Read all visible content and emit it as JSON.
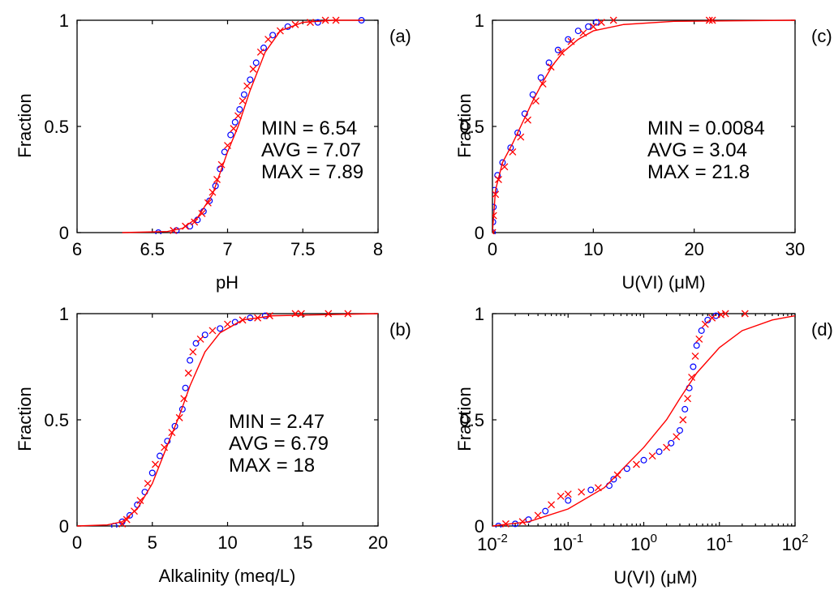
{
  "figure": {
    "panels": [
      {
        "id": "a",
        "tag": "(a)",
        "xlabel": "pH",
        "ylabel": "Fraction",
        "xticks": [
          6,
          6.5,
          7,
          7.5,
          8
        ],
        "xtick_labels": [
          "6",
          "6.5",
          "7",
          "7.5",
          "8"
        ],
        "yticks": [
          0,
          0.5,
          1
        ],
        "ytick_labels": [
          "0",
          "0.5",
          "1"
        ],
        "stats": [
          "MIN = 6.54",
          "AVG = 7.07",
          "MAX = 7.89"
        ]
      },
      {
        "id": "b",
        "tag": "(b)",
        "xlabel": "Alkalinity (meq/L)",
        "ylabel": "Fraction",
        "xticks": [
          0,
          5,
          10,
          15,
          20
        ],
        "xtick_labels": [
          "0",
          "5",
          "10",
          "15",
          "20"
        ],
        "yticks": [
          0,
          0.5,
          1
        ],
        "ytick_labels": [
          "0",
          "0.5",
          "1"
        ],
        "stats": [
          "MIN = 2.47",
          "AVG = 6.79",
          "MAX = 18"
        ]
      },
      {
        "id": "c",
        "tag": "(c)",
        "xlabel": "U(VI) (μM)",
        "ylabel": "Fraction",
        "xticks": [
          0,
          10,
          20,
          30
        ],
        "xtick_labels": [
          "0",
          "10",
          "20",
          "30"
        ],
        "yticks": [
          0,
          0.5,
          1
        ],
        "ytick_labels": [
          "0",
          "0.5",
          "1"
        ],
        "stats": [
          "MIN = 0.0084",
          "AVG = 3.04",
          "MAX = 21.8"
        ]
      },
      {
        "id": "d",
        "tag": "(d)",
        "xlabel": "U(VI) (μM)",
        "ylabel": "Fraction",
        "xticks": [
          0.01,
          0.1,
          1,
          10,
          100
        ],
        "xtick_base": "10",
        "xtick_exponents": [
          "-2",
          "-1",
          "0",
          "1",
          "2"
        ],
        "yticks": [
          0,
          0.5,
          1
        ],
        "ytick_labels": [
          "0",
          "0.5",
          "1"
        ],
        "stats": []
      }
    ]
  },
  "chart_data": [
    {
      "type": "scatter",
      "panel": "a",
      "xlabel": "pH",
      "ylabel": "Fraction",
      "xlim": [
        6,
        8
      ],
      "ylim": [
        0,
        1
      ],
      "series": [
        {
          "marker": "o",
          "color": "#0000ff",
          "points": [
            [
              6.54,
              0.0
            ],
            [
              6.66,
              0.01
            ],
            [
              6.75,
              0.03
            ],
            [
              6.8,
              0.06
            ],
            [
              6.84,
              0.1
            ],
            [
              6.88,
              0.15
            ],
            [
              6.92,
              0.22
            ],
            [
              6.95,
              0.3
            ],
            [
              6.98,
              0.38
            ],
            [
              7.02,
              0.46
            ],
            [
              7.05,
              0.52
            ],
            [
              7.08,
              0.58
            ],
            [
              7.11,
              0.65
            ],
            [
              7.15,
              0.72
            ],
            [
              7.19,
              0.8
            ],
            [
              7.24,
              0.87
            ],
            [
              7.3,
              0.93
            ],
            [
              7.4,
              0.97
            ],
            [
              7.6,
              0.99
            ],
            [
              7.89,
              1.0
            ]
          ]
        },
        {
          "marker": "x",
          "color": "#ff0000",
          "points": [
            [
              6.64,
              0.01
            ],
            [
              6.72,
              0.03
            ],
            [
              6.78,
              0.05
            ],
            [
              6.83,
              0.09
            ],
            [
              6.87,
              0.14
            ],
            [
              6.9,
              0.19
            ],
            [
              6.93,
              0.25
            ],
            [
              6.96,
              0.32
            ],
            [
              7.0,
              0.41
            ],
            [
              7.04,
              0.49
            ],
            [
              7.07,
              0.55
            ],
            [
              7.1,
              0.62
            ],
            [
              7.13,
              0.69
            ],
            [
              7.17,
              0.77
            ],
            [
              7.22,
              0.85
            ],
            [
              7.27,
              0.91
            ],
            [
              7.35,
              0.95
            ],
            [
              7.45,
              0.98
            ],
            [
              7.55,
              0.99
            ],
            [
              7.65,
              1.0
            ],
            [
              7.72,
              1.0
            ]
          ]
        },
        {
          "marker": "line",
          "color": "#ff0000",
          "points": [
            [
              6.3,
              0.0
            ],
            [
              6.6,
              0.005
            ],
            [
              6.7,
              0.02
            ],
            [
              6.8,
              0.07
            ],
            [
              6.9,
              0.18
            ],
            [
              7.0,
              0.38
            ],
            [
              7.07,
              0.5
            ],
            [
              7.15,
              0.67
            ],
            [
              7.25,
              0.85
            ],
            [
              7.35,
              0.95
            ],
            [
              7.5,
              0.99
            ],
            [
              7.7,
              1.0
            ],
            [
              7.9,
              1.0
            ]
          ]
        }
      ]
    },
    {
      "type": "scatter",
      "panel": "b",
      "xlabel": "Alkalinity (meq/L)",
      "ylabel": "Fraction",
      "xlim": [
        0,
        20
      ],
      "ylim": [
        0,
        1
      ],
      "series": [
        {
          "marker": "o",
          "color": "#0000ff",
          "points": [
            [
              2.47,
              0.0
            ],
            [
              3.0,
              0.02
            ],
            [
              3.5,
              0.05
            ],
            [
              4.0,
              0.1
            ],
            [
              4.5,
              0.16
            ],
            [
              5.0,
              0.25
            ],
            [
              5.5,
              0.33
            ],
            [
              6.0,
              0.4
            ],
            [
              6.5,
              0.47
            ],
            [
              7.0,
              0.55
            ],
            [
              7.2,
              0.65
            ],
            [
              7.5,
              0.78
            ],
            [
              7.9,
              0.86
            ],
            [
              8.5,
              0.9
            ],
            [
              9.5,
              0.93
            ],
            [
              10.5,
              0.96
            ],
            [
              11.5,
              0.98
            ],
            [
              12.5,
              0.99
            ]
          ]
        },
        {
          "marker": "x",
          "color": "#ff0000",
          "points": [
            [
              3.0,
              0.01
            ],
            [
              3.3,
              0.03
            ],
            [
              3.8,
              0.07
            ],
            [
              4.2,
              0.12
            ],
            [
              4.7,
              0.2
            ],
            [
              5.2,
              0.29
            ],
            [
              5.8,
              0.37
            ],
            [
              6.3,
              0.44
            ],
            [
              6.8,
              0.51
            ],
            [
              7.1,
              0.6
            ],
            [
              7.4,
              0.72
            ],
            [
              7.7,
              0.82
            ],
            [
              8.2,
              0.88
            ],
            [
              9.0,
              0.92
            ],
            [
              10.0,
              0.95
            ],
            [
              11.0,
              0.97
            ],
            [
              12.0,
              0.98
            ],
            [
              12.8,
              0.99
            ],
            [
              14.5,
              1.0
            ],
            [
              14.9,
              1.0
            ],
            [
              16.7,
              1.0
            ],
            [
              18.0,
              1.0
            ]
          ]
        },
        {
          "marker": "line",
          "color": "#ff0000",
          "points": [
            [
              0.0,
              0.0
            ],
            [
              2.0,
              0.005
            ],
            [
              3.0,
              0.02
            ],
            [
              4.0,
              0.08
            ],
            [
              5.0,
              0.2
            ],
            [
              6.0,
              0.38
            ],
            [
              6.8,
              0.52
            ],
            [
              7.5,
              0.66
            ],
            [
              8.5,
              0.82
            ],
            [
              9.5,
              0.91
            ],
            [
              11.0,
              0.97
            ],
            [
              13.0,
              0.99
            ],
            [
              20.0,
              1.0
            ]
          ]
        }
      ]
    },
    {
      "type": "scatter",
      "panel": "c",
      "xlabel": "U(VI) (μM)",
      "ylabel": "Fraction",
      "xlim": [
        0,
        30
      ],
      "ylim": [
        0,
        1
      ],
      "series": [
        {
          "marker": "o",
          "color": "#0000ff",
          "points": [
            [
              0.01,
              0.0
            ],
            [
              0.05,
              0.05
            ],
            [
              0.1,
              0.12
            ],
            [
              0.2,
              0.2
            ],
            [
              0.5,
              0.27
            ],
            [
              1.0,
              0.33
            ],
            [
              1.8,
              0.4
            ],
            [
              2.5,
              0.47
            ],
            [
              3.2,
              0.56
            ],
            [
              4.0,
              0.65
            ],
            [
              4.8,
              0.73
            ],
            [
              5.6,
              0.8
            ],
            [
              6.5,
              0.86
            ],
            [
              7.5,
              0.91
            ],
            [
              8.5,
              0.95
            ],
            [
              9.5,
              0.97
            ],
            [
              10.3,
              0.99
            ]
          ]
        },
        {
          "marker": "x",
          "color": "#ff0000",
          "points": [
            [
              0.0084,
              0.0
            ],
            [
              0.1,
              0.08
            ],
            [
              0.3,
              0.18
            ],
            [
              0.6,
              0.25
            ],
            [
              1.2,
              0.31
            ],
            [
              2.0,
              0.38
            ],
            [
              2.8,
              0.45
            ],
            [
              3.5,
              0.53
            ],
            [
              4.3,
              0.62
            ],
            [
              5.0,
              0.7
            ],
            [
              5.8,
              0.78
            ],
            [
              6.8,
              0.85
            ],
            [
              7.8,
              0.9
            ],
            [
              9.0,
              0.94
            ],
            [
              10.0,
              0.97
            ],
            [
              10.8,
              0.99
            ],
            [
              12.0,
              1.0
            ],
            [
              21.5,
              1.0
            ],
            [
              21.8,
              1.0
            ]
          ]
        },
        {
          "marker": "line",
          "color": "#ff0000",
          "points": [
            [
              0.0,
              0.0
            ],
            [
              0.3,
              0.2
            ],
            [
              1.0,
              0.33
            ],
            [
              2.0,
              0.42
            ],
            [
              3.0,
              0.52
            ],
            [
              4.0,
              0.62
            ],
            [
              5.0,
              0.71
            ],
            [
              6.0,
              0.79
            ],
            [
              7.0,
              0.85
            ],
            [
              8.5,
              0.91
            ],
            [
              10.0,
              0.95
            ],
            [
              13.0,
              0.98
            ],
            [
              18.0,
              0.995
            ],
            [
              30.0,
              1.0
            ]
          ]
        }
      ]
    },
    {
      "type": "scatter",
      "panel": "d",
      "xlabel": "U(VI) (μM)",
      "ylabel": "Fraction",
      "xscale": "log",
      "xlim": [
        0.01,
        100
      ],
      "ylim": [
        0,
        1
      ],
      "series": [
        {
          "marker": "o",
          "color": "#0000ff",
          "points": [
            [
              0.012,
              0.0
            ],
            [
              0.02,
              0.01
            ],
            [
              0.03,
              0.03
            ],
            [
              0.05,
              0.07
            ],
            [
              0.1,
              0.12
            ],
            [
              0.2,
              0.17
            ],
            [
              0.35,
              0.19
            ],
            [
              0.4,
              0.22
            ],
            [
              0.6,
              0.27
            ],
            [
              1.0,
              0.31
            ],
            [
              1.6,
              0.35
            ],
            [
              2.3,
              0.39
            ],
            [
              3.0,
              0.45
            ],
            [
              3.5,
              0.55
            ],
            [
              4.0,
              0.65
            ],
            [
              4.5,
              0.75
            ],
            [
              5.0,
              0.85
            ],
            [
              5.8,
              0.92
            ],
            [
              7.0,
              0.97
            ],
            [
              9.0,
              0.99
            ]
          ]
        },
        {
          "marker": "x",
          "color": "#ff0000",
          "points": [
            [
              0.0084,
              0.0
            ],
            [
              0.015,
              0.01
            ],
            [
              0.025,
              0.02
            ],
            [
              0.04,
              0.05
            ],
            [
              0.06,
              0.1
            ],
            [
              0.08,
              0.14
            ],
            [
              0.1,
              0.15
            ],
            [
              0.15,
              0.16
            ],
            [
              0.25,
              0.18
            ],
            [
              0.45,
              0.24
            ],
            [
              0.8,
              0.29
            ],
            [
              1.3,
              0.33
            ],
            [
              2.0,
              0.37
            ],
            [
              2.7,
              0.42
            ],
            [
              3.3,
              0.5
            ],
            [
              3.8,
              0.6
            ],
            [
              4.3,
              0.7
            ],
            [
              4.8,
              0.8
            ],
            [
              5.4,
              0.88
            ],
            [
              6.5,
              0.95
            ],
            [
              8.0,
              0.98
            ],
            [
              10.5,
              0.995
            ],
            [
              12.0,
              1.0
            ],
            [
              21.8,
              1.0
            ]
          ]
        },
        {
          "marker": "line",
          "color": "#ff0000",
          "points": [
            [
              0.01,
              0.0
            ],
            [
              0.03,
              0.02
            ],
            [
              0.1,
              0.08
            ],
            [
              0.3,
              0.18
            ],
            [
              1.0,
              0.37
            ],
            [
              2.0,
              0.5
            ],
            [
              3.0,
              0.6
            ],
            [
              5.0,
              0.72
            ],
            [
              10.0,
              0.84
            ],
            [
              20.0,
              0.92
            ],
            [
              50.0,
              0.97
            ],
            [
              100.0,
              0.99
            ]
          ]
        }
      ]
    }
  ]
}
